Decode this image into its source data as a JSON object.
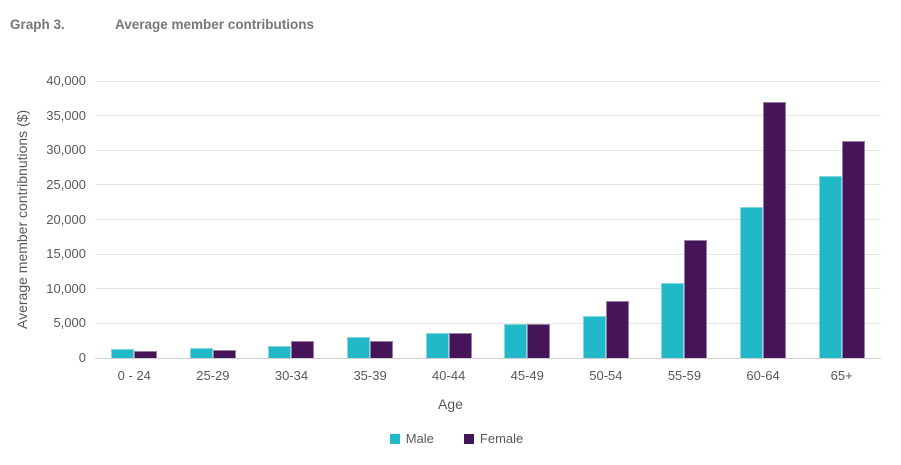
{
  "header": {
    "label": "Graph 3.",
    "title": "Average member contributions"
  },
  "chart_data": {
    "type": "bar",
    "title": "Average member contributions",
    "categories": [
      "0 - 24",
      "25-29",
      "30-34",
      "35-39",
      "40-44",
      "45-49",
      "50-54",
      "55-59",
      "60-64",
      "65+"
    ],
    "series": [
      {
        "name": "Male",
        "color": "#21B8C7",
        "values": [
          1300,
          1450,
          1700,
          3050,
          3600,
          4900,
          6100,
          10800,
          21800,
          26300
        ]
      },
      {
        "name": "Female",
        "color": "#461559",
        "values": [
          1050,
          1200,
          2400,
          2450,
          3550,
          4950,
          8300,
          17100,
          36900,
          31400
        ]
      }
    ],
    "xlabel": "Age",
    "ylabel": "Average member contribnutions ($)",
    "ylim": [
      0,
      40000
    ],
    "ytick_step": 5000,
    "grid": true,
    "legend_position": "bottom"
  },
  "colors": {
    "male": "#21B8C7",
    "female": "#461559",
    "header_text": "#76777B",
    "axis_text": "#595959",
    "gridline": "#E4E4E4",
    "zero_line": "#CFCFCF"
  }
}
